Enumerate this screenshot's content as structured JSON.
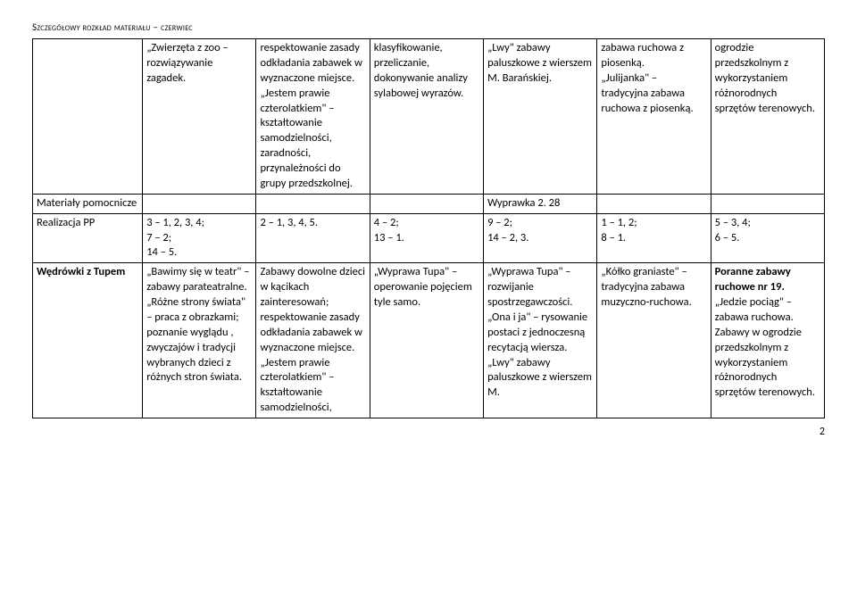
{
  "header": "Szczegółowy rozkład materiału – czerwiec",
  "row1": {
    "label": "",
    "c1": "„Zwierzęta z zoo – rozwiązywanie zagadek.",
    "c2": "respektowanie zasady odkładania zabawek w wyznaczone miejsce.\n„Jestem prawie czterolatkiem\" – kształtowanie samodzielności, zaradności, przynależności do grupy przedszkolnej.",
    "c3": "klasyfikowanie, przeliczanie, dokonywanie analizy sylabowej wyrazów.",
    "c4": "„Lwy\" zabawy paluszkowe z wierszem M. Barańskiej.",
    "c5": "zabawa ruchowa z piosenką.\n„Julijanka\" – tradycyjna zabawa ruchowa z piosenką.",
    "c6": "ogrodzie przedszkolnym z wykorzystaniem różnorodnych sprzętów terenowych."
  },
  "row2": {
    "label": "Materiały pomocnicze",
    "c1": "",
    "c2": "",
    "c3": "",
    "c4": "Wyprawka 2. 28",
    "c5": "",
    "c6": ""
  },
  "row3": {
    "label": "Realizacja PP",
    "c1": "3 – 1, 2, 3, 4;\n7 – 2;\n14 – 5.",
    "c2": "2 – 1, 3, 4, 5.",
    "c3": "4 – 2;\n13 – 1.",
    "c4": "9 – 2;\n14 – 2, 3.",
    "c5": "1 – 1, 2;\n8 – 1.",
    "c6": "5 – 3, 4;\n6 – 5."
  },
  "row4": {
    "label": "Wędrówki z Tupem",
    "c1": "„Bawimy się w teatr\" – zabawy parateatralne.\n„Różne strony świata\" – praca z obrazkami; poznanie wyglądu , zwyczajów i tradycji wybranych dzieci z różnych stron świata.",
    "c2": "Zabawy dowolne dzieci w kącikach zainteresowań; respektowanie zasady odkładania zabawek w wyznaczone miejsce.\n„Jestem prawie czterolatkiem\" – kształtowanie samodzielności,",
    "c3": "„Wyprawa Tupa\" – operowanie pojęciem tyle samo.",
    "c4": "„Wyprawa Tupa\" –rozwijanie spostrzegawczości.\n„Ona i ja\" – rysowanie postaci z jednoczesną recytacją wiersza.\n„Lwy\" zabawy paluszkowe z wierszem M.",
    "c5": "„Kółko graniaste\" – tradycyjna zabawa muzyczno-ruchowa.",
    "c6_before": "Poranne zabawy ruchowe nr 19.",
    "c6_after": "\n„Jedzie pociąg\" – zabawa ruchowa.\nZabawy w ogrodzie przedszkolnym z wykorzystaniem różnorodnych sprzętów terenowych."
  },
  "page_number": "2"
}
